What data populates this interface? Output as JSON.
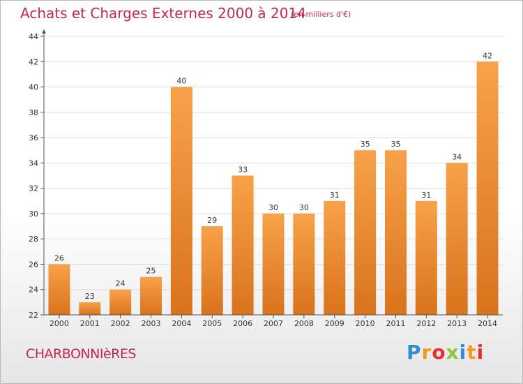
{
  "header": {
    "title": "Achats et Charges Externes 2000 à 2014",
    "unit": "(en milliers d'€)"
  },
  "footer": {
    "city": "CHARBONNIèRES",
    "logo_letters": [
      "P",
      "r",
      "o",
      "x",
      "i",
      "t",
      "i"
    ],
    "logo_colors": [
      "#2f8fd0",
      "#f29a1b",
      "#e8312f",
      "#8cc63f",
      "#2f8fd0",
      "#f29a1b",
      "#e8312f"
    ]
  },
  "colors": {
    "bar_light": "#f7a24a",
    "bar_dark": "#d9731c",
    "accent_text": "#c4284b",
    "grid": "#dcdcdc",
    "axis": "#555555"
  },
  "chart_data": {
    "type": "bar",
    "title": "Achats et Charges Externes 2000 à 2014",
    "subtitle": "(en milliers d'€)",
    "xlabel": "",
    "ylabel": "",
    "categories": [
      "2000",
      "2001",
      "2002",
      "2003",
      "2004",
      "2005",
      "2006",
      "2007",
      "2008",
      "2009",
      "2010",
      "2011",
      "2012",
      "2013",
      "2014"
    ],
    "values": [
      26,
      23,
      24,
      25,
      40,
      29,
      33,
      30,
      30,
      31,
      35,
      35,
      31,
      34,
      42
    ],
    "ylim": [
      22,
      44
    ],
    "yticks": [
      22,
      24,
      26,
      28,
      30,
      32,
      34,
      36,
      38,
      40,
      42,
      44
    ],
    "grid": true,
    "data_labels": true
  }
}
